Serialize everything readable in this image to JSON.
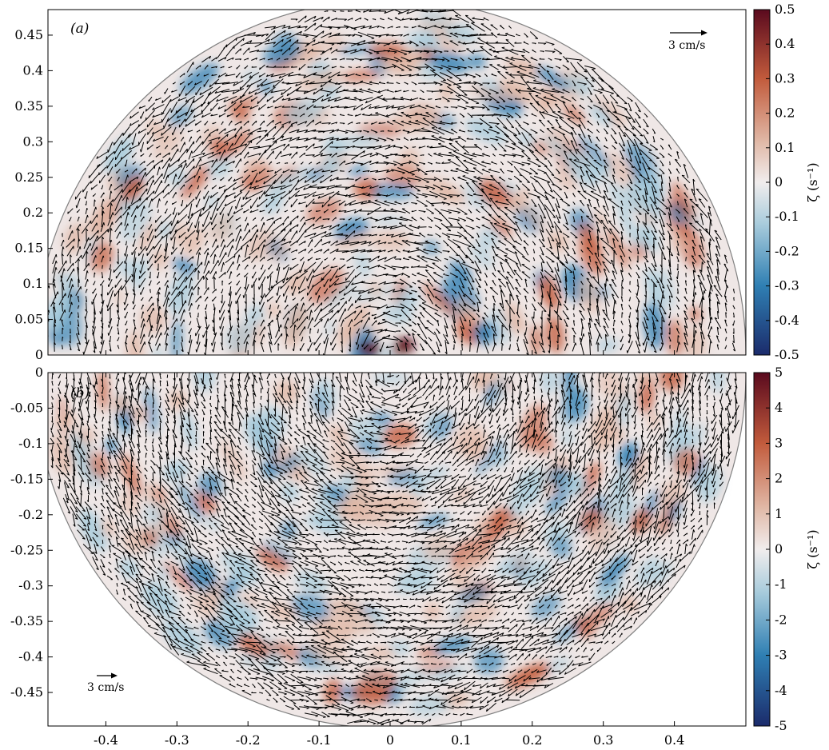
{
  "figure": {
    "colors": {
      "background": "#ffffff",
      "tank_fill": "#efe7e6",
      "rim": "#808080",
      "arrows": "#000000",
      "neg_max": "#1b2b6b",
      "neg_mid": "#2f7fb3",
      "neg_low": "#a9ccdc",
      "zero": "#f1eded",
      "pos_low": "#e0b7a5",
      "pos_mid": "#c25b3c",
      "pos_max": "#5a0a1e"
    }
  },
  "chart_data": [
    {
      "type": "heatmap",
      "panel_label": "(a)",
      "xlabel": "",
      "ylabel": "",
      "xlim": [
        -0.48,
        0.5
      ],
      "ylim": [
        0,
        0.485
      ],
      "yticks": [
        "0",
        "0.05",
        "0.1",
        "0.15",
        "0.2",
        "0.25",
        "0.3",
        "0.35",
        "0.4",
        "0.45"
      ],
      "xticks": [],
      "colorbar": {
        "label": "ζ (s⁻¹)",
        "range": [
          -0.5,
          0.5
        ],
        "ticks": [
          "0.5",
          "0.4",
          "0.3",
          "0.2",
          "0.1",
          "0",
          "-0.1",
          "-0.2",
          "-0.3",
          "-0.4",
          "-0.5"
        ]
      },
      "reference_arrow": {
        "label": "3 cm/s",
        "placement": "top-right"
      },
      "description": "Vorticity field with velocity arrows in upper half of circular tank"
    },
    {
      "type": "heatmap",
      "panel_label": "(b)",
      "xlabel": "",
      "ylabel": "",
      "xlim": [
        -0.48,
        0.5
      ],
      "ylim": [
        -0.495,
        0
      ],
      "xticks": [
        "-0.4",
        "-0.3",
        "-0.2",
        "-0.1",
        "0",
        "0.1",
        "0.2",
        "0.3",
        "0.4"
      ],
      "yticks": [
        "0",
        "-0.05",
        "-0.1",
        "-0.15",
        "-0.2",
        "-0.25",
        "-0.3",
        "-0.35",
        "-0.4",
        "-0.45"
      ],
      "colorbar": {
        "label": "ζ (s⁻¹)",
        "range": [
          -5,
          5
        ],
        "ticks": [
          "5",
          "4",
          "3",
          "2",
          "1",
          "0",
          "-1",
          "-2",
          "-3",
          "-4",
          "-5"
        ]
      },
      "reference_arrow": {
        "label": "3 cm/s",
        "placement": "bottom-left"
      },
      "description": "Vorticity field with velocity arrows in lower half of circular tank"
    }
  ]
}
